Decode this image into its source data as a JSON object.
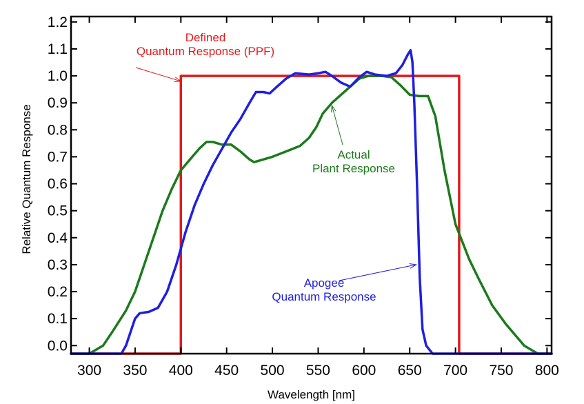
{
  "chart_data": {
    "type": "line",
    "xlabel": "Wavelength [nm]",
    "ylabel": "Relative Quantum Response",
    "xlim": [
      280,
      805
    ],
    "ylim": [
      -0.03,
      1.22
    ],
    "xticks": [
      300,
      350,
      400,
      450,
      500,
      550,
      600,
      650,
      700,
      750,
      800
    ],
    "yticks": [
      0.0,
      0.1,
      0.2,
      0.3,
      0.4,
      0.5,
      0.6,
      0.7,
      0.8,
      0.9,
      1.0,
      1.1,
      1.2
    ],
    "grid": false,
    "colors": {
      "ppf": "#e31a1c",
      "apogee": "#1f1fe0",
      "plant": "#1c7a1c"
    },
    "series": [
      {
        "key": "ppf",
        "points": [
          [
            280,
            -0.03
          ],
          [
            400,
            -0.03
          ],
          [
            400,
            1.0
          ],
          [
            704,
            1.0
          ],
          [
            704,
            -0.03
          ],
          [
            805,
            -0.03
          ]
        ]
      },
      {
        "key": "apogee",
        "points": [
          [
            280,
            -0.03
          ],
          [
            335,
            -0.03
          ],
          [
            340,
            0.0
          ],
          [
            345,
            0.05
          ],
          [
            350,
            0.1
          ],
          [
            355,
            0.12
          ],
          [
            365,
            0.125
          ],
          [
            375,
            0.14
          ],
          [
            385,
            0.2
          ],
          [
            395,
            0.3
          ],
          [
            405,
            0.42
          ],
          [
            415,
            0.52
          ],
          [
            425,
            0.6
          ],
          [
            435,
            0.67
          ],
          [
            445,
            0.73
          ],
          [
            455,
            0.79
          ],
          [
            465,
            0.84
          ],
          [
            475,
            0.9
          ],
          [
            482,
            0.94
          ],
          [
            490,
            0.94
          ],
          [
            497,
            0.935
          ],
          [
            505,
            0.96
          ],
          [
            515,
            0.99
          ],
          [
            525,
            1.01
          ],
          [
            540,
            1.005
          ],
          [
            550,
            1.01
          ],
          [
            558,
            1.015
          ],
          [
            565,
            1.0
          ],
          [
            575,
            0.975
          ],
          [
            585,
            0.96
          ],
          [
            595,
            0.995
          ],
          [
            603,
            1.015
          ],
          [
            612,
            1.005
          ],
          [
            625,
            1.0
          ],
          [
            635,
            1.01
          ],
          [
            642,
            1.04
          ],
          [
            648,
            1.08
          ],
          [
            651,
            1.095
          ],
          [
            653,
            1.05
          ],
          [
            655,
            0.9
          ],
          [
            658,
            0.6
          ],
          [
            661,
            0.25
          ],
          [
            664,
            0.06
          ],
          [
            668,
            0.0
          ],
          [
            675,
            -0.03
          ],
          [
            805,
            -0.03
          ]
        ]
      },
      {
        "key": "plant",
        "points": [
          [
            280,
            -0.03
          ],
          [
            300,
            -0.03
          ],
          [
            315,
            0.0
          ],
          [
            325,
            0.05
          ],
          [
            340,
            0.13
          ],
          [
            350,
            0.2
          ],
          [
            360,
            0.3
          ],
          [
            370,
            0.4
          ],
          [
            380,
            0.5
          ],
          [
            390,
            0.58
          ],
          [
            400,
            0.65
          ],
          [
            410,
            0.69
          ],
          [
            420,
            0.73
          ],
          [
            428,
            0.755
          ],
          [
            435,
            0.755
          ],
          [
            445,
            0.745
          ],
          [
            455,
            0.745
          ],
          [
            465,
            0.72
          ],
          [
            475,
            0.69
          ],
          [
            480,
            0.68
          ],
          [
            490,
            0.69
          ],
          [
            500,
            0.7
          ],
          [
            515,
            0.72
          ],
          [
            530,
            0.74
          ],
          [
            540,
            0.77
          ],
          [
            548,
            0.81
          ],
          [
            555,
            0.86
          ],
          [
            565,
            0.9
          ],
          [
            575,
            0.93
          ],
          [
            585,
            0.96
          ],
          [
            595,
            0.99
          ],
          [
            605,
            1.0
          ],
          [
            620,
            1.0
          ],
          [
            630,
            0.995
          ],
          [
            640,
            0.965
          ],
          [
            650,
            0.93
          ],
          [
            660,
            0.925
          ],
          [
            670,
            0.925
          ],
          [
            678,
            0.85
          ],
          [
            688,
            0.65
          ],
          [
            700,
            0.45
          ],
          [
            715,
            0.32
          ],
          [
            725,
            0.25
          ],
          [
            740,
            0.15
          ],
          [
            755,
            0.08
          ],
          [
            765,
            0.04
          ],
          [
            775,
            0.0
          ],
          [
            785,
            -0.02
          ],
          [
            790,
            -0.03
          ],
          [
            805,
            -0.03
          ]
        ]
      }
    ],
    "annotations": [
      {
        "key": "ppf",
        "lines": [
          "Defined",
          "Quantum Response (PPF)"
        ],
        "arrow_to": [
          400,
          0.98
        ]
      },
      {
        "key": "plant",
        "lines": [
          "Actual",
          "Plant Response"
        ],
        "arrow_to": [
          565,
          0.89
        ]
      },
      {
        "key": "apogee",
        "lines": [
          "Apogee",
          "Quantum Response"
        ],
        "arrow_to": [
          657,
          0.3
        ]
      }
    ]
  }
}
